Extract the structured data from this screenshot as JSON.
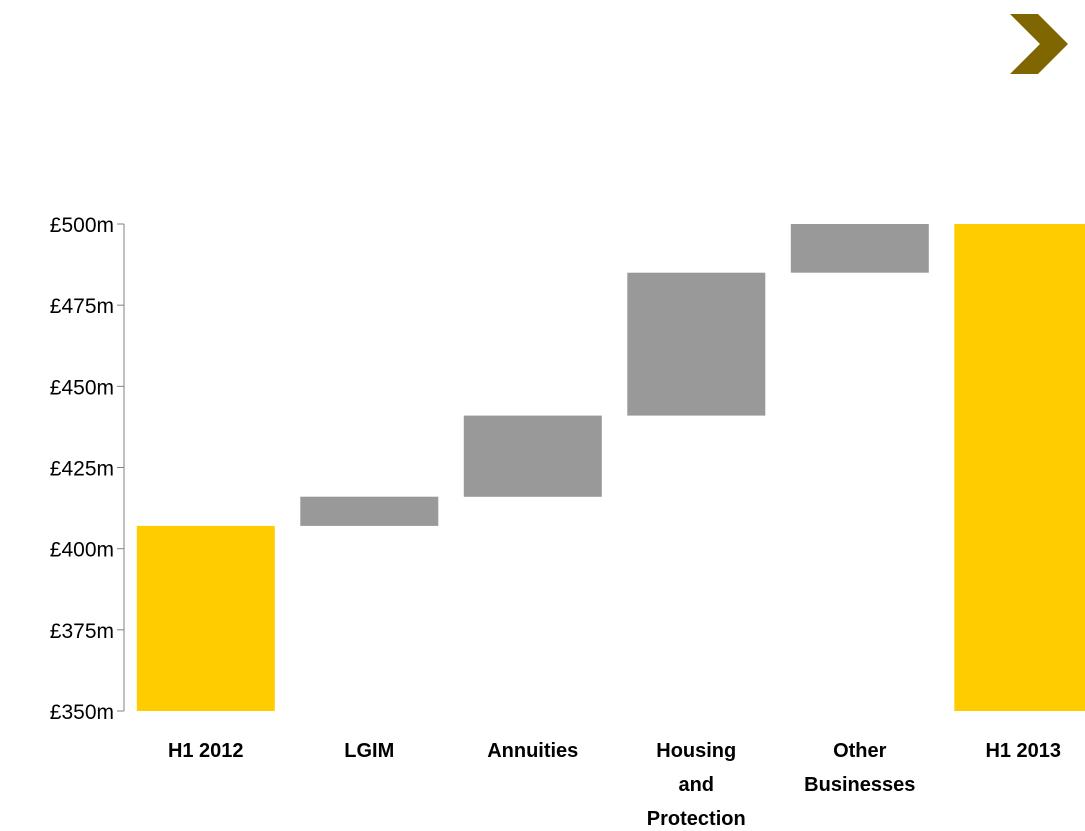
{
  "chart_data": {
    "type": "bar",
    "subtype": "waterfall",
    "title": "",
    "xlabel": "",
    "ylabel": "",
    "ylim": [
      350,
      500
    ],
    "y_ticks": [
      350,
      375,
      400,
      425,
      450,
      475,
      500
    ],
    "y_tick_labels": [
      "£350m",
      "£375m",
      "£400m",
      "£425m",
      "£450m",
      "£475m",
      "£500m"
    ],
    "categories": [
      [
        "H1 2012"
      ],
      [
        "LGIM"
      ],
      [
        "Annuities"
      ],
      [
        "Housing",
        "and",
        "Protection"
      ],
      [
        "Other",
        "Businesses"
      ],
      [
        "H1 2013"
      ]
    ],
    "bars": [
      {
        "kind": "total",
        "start": 350,
        "end": 407
      },
      {
        "kind": "change",
        "start": 407,
        "end": 416
      },
      {
        "kind": "change",
        "start": 416,
        "end": 441
      },
      {
        "kind": "change",
        "start": 441,
        "end": 485
      },
      {
        "kind": "change",
        "start": 485,
        "end": 500
      },
      {
        "kind": "total",
        "start": 350,
        "end": 500
      }
    ],
    "grid": false,
    "legend": "none",
    "colors": {
      "total": "#FFCC00",
      "change": "#999999",
      "axis": "#808080",
      "arrow": "#806600"
    }
  },
  "icons": {
    "next_arrow": "chevron-right-icon"
  }
}
